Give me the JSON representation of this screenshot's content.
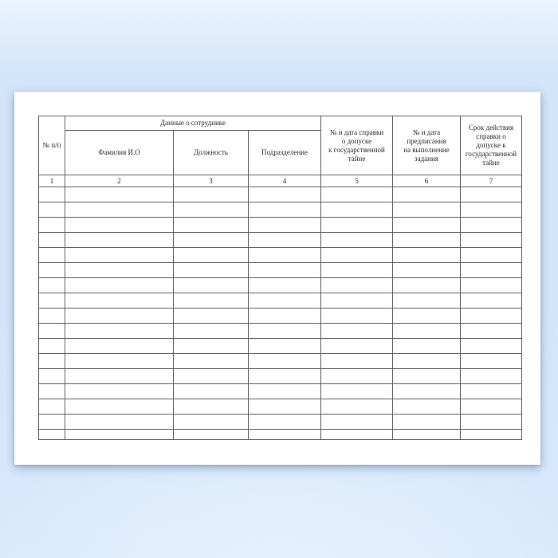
{
  "colors": {
    "background_top": "#ecf4fe",
    "background_mid": "#d3e5fa",
    "background_bottom": "#d9eafd",
    "paper": "#ffffff",
    "table_border": "#636363",
    "text": "#2b2b2b"
  },
  "table": {
    "headers": {
      "num": "№ п/п",
      "group": "Данные о сотруднике",
      "col2": "Фамилия И.О",
      "col3": "Должность",
      "col4": "Подразделение",
      "col5": "№ и дата справки\nо допуске\nк государственной\nтайне",
      "col6": "№ и дата\nпредписания\nна выполнение\nзадания",
      "col7": "Срок действия\nсправки о\nдопуске к\nгосударственной\nтайне"
    },
    "column_numbers": [
      "1",
      "2",
      "3",
      "4",
      "5",
      "6",
      "7"
    ],
    "column_count": 7,
    "empty_row_count": 17
  }
}
